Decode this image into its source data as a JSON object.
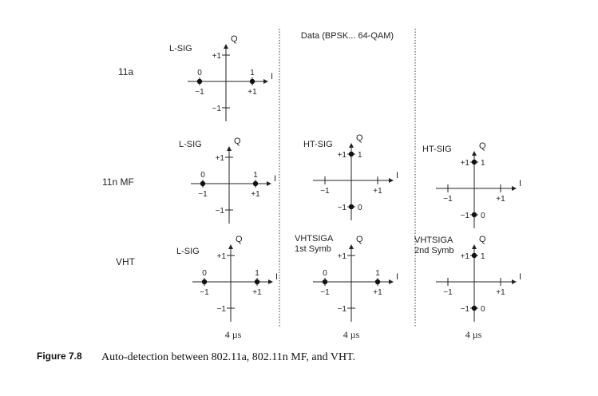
{
  "header": {
    "data_label": "Data (BPSK... 64-QAM)"
  },
  "rows": [
    {
      "name": "11a"
    },
    {
      "name": "11n MF"
    },
    {
      "name": "VHT"
    }
  ],
  "plots": [
    {
      "title": "L-SIG",
      "q_top": "+1",
      "q_bot": "−1",
      "i_left": "−1",
      "i_right": "+1",
      "pt_left": "0",
      "pt_right": "1",
      "q_pt_top": "",
      "q_pt_bot": "",
      "axis_q": "Q",
      "axis_i": "I"
    },
    {
      "title": "L-SIG",
      "q_top": "+1",
      "q_bot": "−1",
      "i_left": "−1",
      "i_right": "+1",
      "pt_left": "0",
      "pt_right": "1",
      "q_pt_top": "",
      "q_pt_bot": "",
      "axis_q": "Q",
      "axis_i": "I"
    },
    {
      "title": "HT-SIG",
      "q_top": "+1",
      "q_bot": "−1",
      "i_left": "−1",
      "i_right": "+1",
      "pt_left": "",
      "pt_right": "",
      "q_pt_top": "1",
      "q_pt_bot": "0",
      "axis_q": "Q",
      "axis_i": "I"
    },
    {
      "title": "HT-SIG",
      "q_top": "+1",
      "q_bot": "−1",
      "i_left": "−1",
      "i_right": "+1",
      "pt_left": "",
      "pt_right": "",
      "q_pt_top": "1",
      "q_pt_bot": "0",
      "axis_q": "Q",
      "axis_i": "I"
    },
    {
      "title": "L-SIG",
      "q_top": "+1",
      "q_bot": "−1",
      "i_left": "−1",
      "i_right": "+1",
      "pt_left": "0",
      "pt_right": "1",
      "q_pt_top": "",
      "q_pt_bot": "",
      "axis_q": "Q",
      "axis_i": "I"
    },
    {
      "title": "VHTSIGA",
      "subtitle": "1st Symb",
      "q_top": "+1",
      "q_bot": "−1",
      "i_left": "−1",
      "i_right": "+1",
      "pt_left": "0",
      "pt_right": "1",
      "q_pt_top": "",
      "q_pt_bot": "",
      "axis_q": "Q",
      "axis_i": "I"
    },
    {
      "title": "VHTSIGA",
      "subtitle": "2nd Symb",
      "q_top": "+1",
      "q_bot": "−1",
      "i_left": "−1",
      "i_right": "+1",
      "pt_left": "",
      "pt_right": "",
      "q_pt_top": "1",
      "q_pt_bot": "0",
      "axis_q": "Q",
      "axis_i": "I"
    }
  ],
  "durations": [
    "4 µs",
    "4 µs",
    "4 µs"
  ],
  "caption": {
    "label": "Figure 7.8",
    "text": "Auto-detection between 802.11a, 802.11n MF, and VHT."
  }
}
